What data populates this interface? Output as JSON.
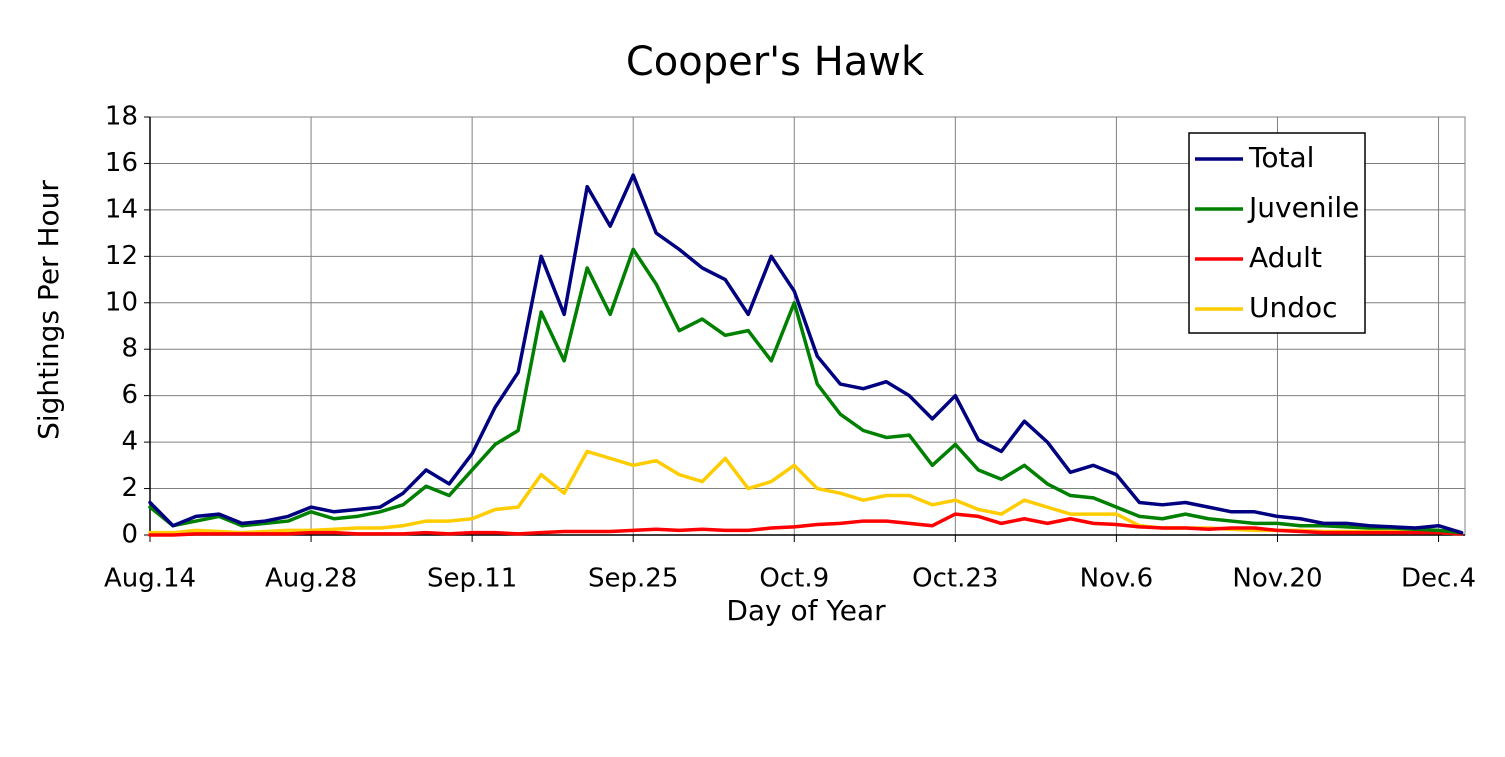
{
  "chart_data": {
    "type": "line",
    "title": "Cooper's Hawk",
    "x_label": "Day of Year",
    "y_label": "Sightings Per Hour",
    "x": [
      0,
      2,
      4,
      6,
      8,
      10,
      12,
      14,
      16,
      18,
      20,
      22,
      24,
      26,
      28,
      30,
      32,
      34,
      36,
      38,
      40,
      42,
      44,
      46,
      48,
      50,
      52,
      54,
      56,
      58,
      60,
      62,
      64,
      66,
      68,
      70,
      72,
      74,
      76,
      78,
      80,
      82,
      84,
      86,
      88,
      90,
      92,
      94,
      96,
      98,
      100,
      102,
      104,
      106,
      108,
      110,
      112,
      114
    ],
    "xlim": [
      0,
      114.3
    ],
    "xticks": [
      {
        "value": 0,
        "label": "Aug.14"
      },
      {
        "value": 14,
        "label": "Aug.28"
      },
      {
        "value": 28,
        "label": "Sep.11"
      },
      {
        "value": 42,
        "label": "Sep.25"
      },
      {
        "value": 56,
        "label": "Oct.9"
      },
      {
        "value": 70,
        "label": "Oct.23"
      },
      {
        "value": 84,
        "label": "Nov.6"
      },
      {
        "value": 98,
        "label": "Nov.20"
      },
      {
        "value": 112,
        "label": "Dec.4"
      }
    ],
    "ylim": [
      0,
      18
    ],
    "yticks": [
      0,
      2,
      4,
      6,
      8,
      10,
      12,
      14,
      16,
      18
    ],
    "grid": true,
    "legend": "upper right",
    "series": [
      {
        "name": "Total",
        "color": "#000080",
        "values": [
          1.4,
          0.4,
          0.8,
          0.9,
          0.5,
          0.6,
          0.8,
          1.2,
          1.0,
          1.1,
          1.2,
          1.8,
          2.8,
          2.2,
          3.5,
          5.5,
          7.0,
          12.0,
          9.5,
          15.0,
          13.3,
          15.5,
          13.0,
          12.3,
          11.5,
          11.0,
          9.5,
          12.0,
          10.5,
          7.7,
          6.5,
          6.3,
          6.6,
          6.0,
          5.0,
          6.0,
          4.1,
          3.6,
          4.9,
          4.0,
          2.7,
          3.0,
          2.6,
          1.4,
          1.3,
          1.4,
          1.2,
          1.0,
          1.0,
          0.8,
          0.7,
          0.5,
          0.5,
          0.4,
          0.35,
          0.3,
          0.4,
          0.1
        ]
      },
      {
        "name": "Juvenile",
        "color": "#008000",
        "values": [
          1.2,
          0.4,
          0.6,
          0.8,
          0.4,
          0.5,
          0.6,
          1.0,
          0.7,
          0.8,
          1.0,
          1.3,
          2.1,
          1.7,
          2.8,
          3.9,
          4.5,
          9.6,
          7.5,
          11.5,
          9.5,
          12.3,
          10.8,
          8.8,
          9.3,
          8.6,
          8.8,
          7.5,
          10.0,
          6.5,
          5.2,
          4.5,
          4.2,
          4.3,
          3.0,
          3.9,
          2.8,
          2.4,
          3.0,
          2.2,
          1.7,
          1.6,
          1.2,
          0.8,
          0.7,
          0.9,
          0.7,
          0.6,
          0.5,
          0.5,
          0.4,
          0.4,
          0.35,
          0.3,
          0.3,
          0.25,
          0.2,
          0.1
        ]
      },
      {
        "name": "Adult",
        "color": "#ff0000",
        "values": [
          0,
          0,
          0.05,
          0.05,
          0.05,
          0.05,
          0.05,
          0.1,
          0.1,
          0.05,
          0.05,
          0.05,
          0.1,
          0.05,
          0.1,
          0.1,
          0.05,
          0.1,
          0.15,
          0.15,
          0.15,
          0.2,
          0.25,
          0.2,
          0.25,
          0.2,
          0.2,
          0.3,
          0.35,
          0.45,
          0.5,
          0.6,
          0.6,
          0.5,
          0.4,
          0.9,
          0.8,
          0.5,
          0.7,
          0.5,
          0.7,
          0.5,
          0.45,
          0.35,
          0.3,
          0.3,
          0.25,
          0.3,
          0.3,
          0.2,
          0.15,
          0.1,
          0.1,
          0.1,
          0.1,
          0.1,
          0.1,
          0.05
        ]
      },
      {
        "name": "Undoc",
        "color": "#ffcc00",
        "values": [
          0.1,
          0.1,
          0.2,
          0.15,
          0.1,
          0.15,
          0.2,
          0.2,
          0.25,
          0.3,
          0.3,
          0.4,
          0.6,
          0.6,
          0.7,
          1.1,
          1.2,
          2.6,
          1.8,
          3.6,
          3.3,
          3.0,
          3.2,
          2.6,
          2.3,
          3.3,
          2.0,
          2.3,
          3.0,
          2.0,
          1.8,
          1.5,
          1.7,
          1.7,
          1.3,
          1.5,
          1.1,
          0.9,
          1.5,
          1.2,
          0.9,
          0.9,
          0.9,
          0.4,
          0.3,
          0.3,
          0.3,
          0.25,
          0.2,
          0.2,
          0.2,
          0.15,
          0.15,
          0.15,
          0.15,
          0.15,
          0.1,
          0.05
        ]
      }
    ]
  }
}
